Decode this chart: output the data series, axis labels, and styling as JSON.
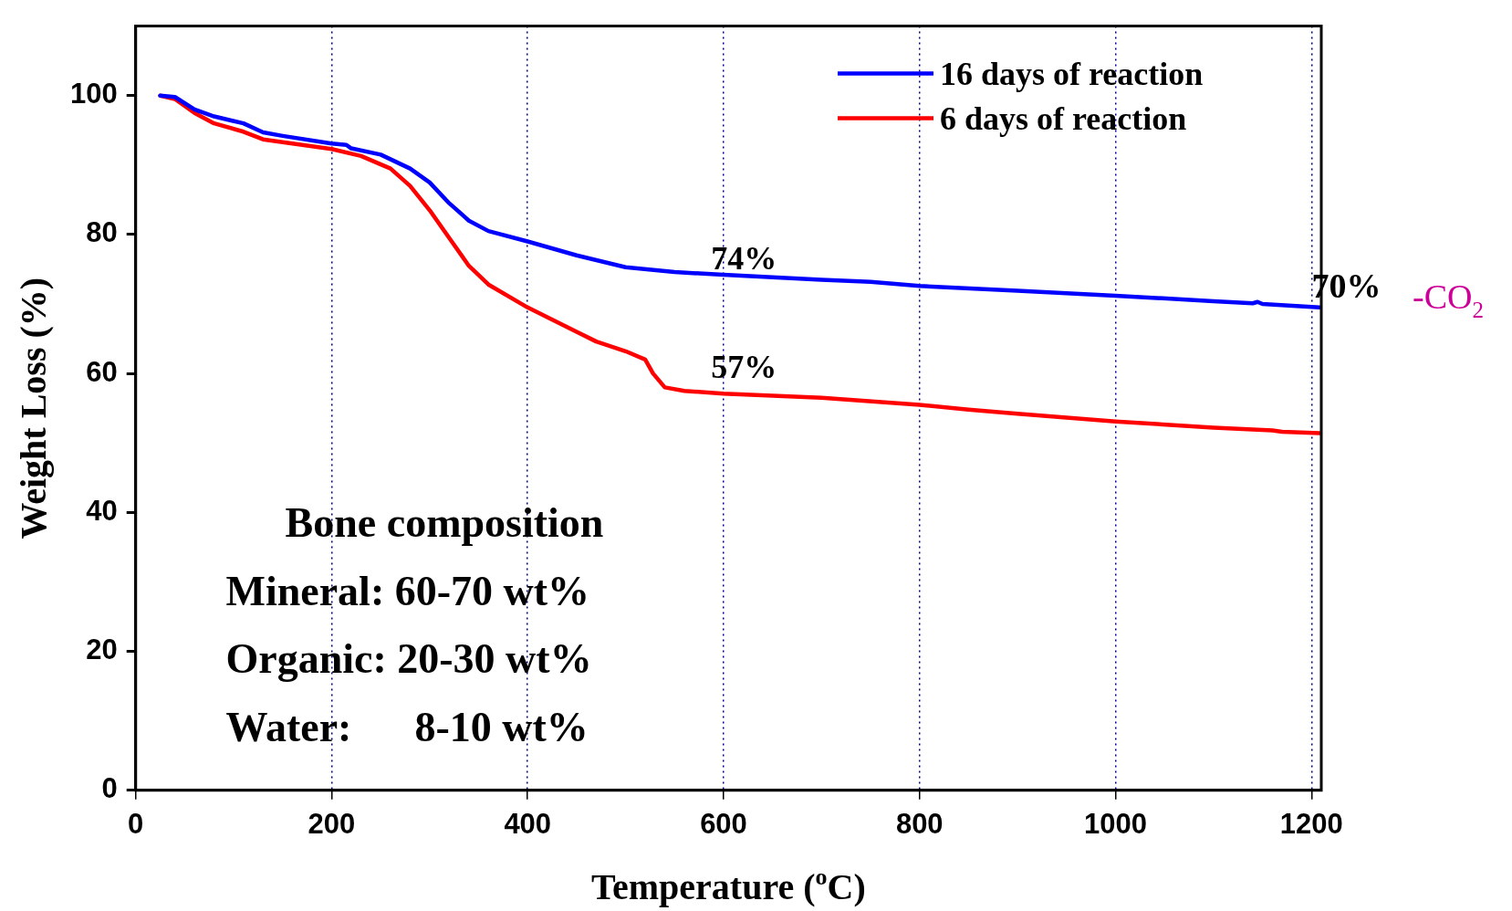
{
  "chart_data": {
    "type": "line",
    "xlabel": "Temperature ($^{o}$C)",
    "ylabel": "Weight Loss (%)",
    "xlim": [
      0,
      1210
    ],
    "xticks": [
      0,
      200,
      400,
      600,
      800,
      1000,
      1200
    ],
    "ylim": [
      0,
      110
    ],
    "yticks": [
      0,
      20,
      40,
      60,
      80,
      100
    ],
    "grid": "x",
    "legend": "top right",
    "marker": "none",
    "line_style": "solid",
    "series": [
      {
        "name": "16 days of reaction",
        "color": "#0000ff",
        "x": [
          25,
          40,
          60,
          80,
          110,
          130,
          150,
          200,
          215,
          220,
          250,
          280,
          300,
          320,
          340,
          360,
          400,
          450,
          500,
          550,
          600,
          700,
          750,
          800,
          900,
          1000,
          1100,
          1140,
          1145,
          1150,
          1208
        ],
        "values": [
          100,
          99.8,
          98,
          97,
          96,
          94.7,
          94.2,
          93.1,
          92.9,
          92.4,
          91.5,
          89.5,
          87.5,
          84.5,
          82,
          80.5,
          79,
          77,
          75.3,
          74.6,
          74.2,
          73.5,
          73.2,
          72.6,
          71.9,
          71.2,
          70.4,
          70.1,
          70.3,
          70,
          69.5
        ]
      },
      {
        "name": "6 days of reaction",
        "color": "#ff0000",
        "x": [
          25,
          40,
          60,
          80,
          110,
          130,
          200,
          230,
          260,
          280,
          300,
          320,
          340,
          360,
          400,
          450,
          470,
          500,
          520,
          528,
          540,
          560,
          600,
          700,
          800,
          850,
          900,
          1000,
          1100,
          1160,
          1170,
          1208
        ],
        "values": [
          100,
          99.5,
          97.5,
          96,
          94.8,
          93.7,
          92.3,
          91.3,
          89.5,
          87,
          83.5,
          79.5,
          75.5,
          72.8,
          69.5,
          66,
          64.6,
          63.2,
          62,
          60,
          58,
          57.5,
          57.1,
          56.5,
          55.5,
          54.8,
          54.2,
          53.1,
          52.2,
          51.8,
          51.6,
          51.4
        ]
      }
    ],
    "annotations": [
      "74%",
      "57%",
      "70%",
      "-CO$_{2}$",
      "Bone composition",
      "Mineral: 60-70 wt%",
      "Organic: 20-30 wt%",
      "Water:      8-10 wt%"
    ]
  }
}
